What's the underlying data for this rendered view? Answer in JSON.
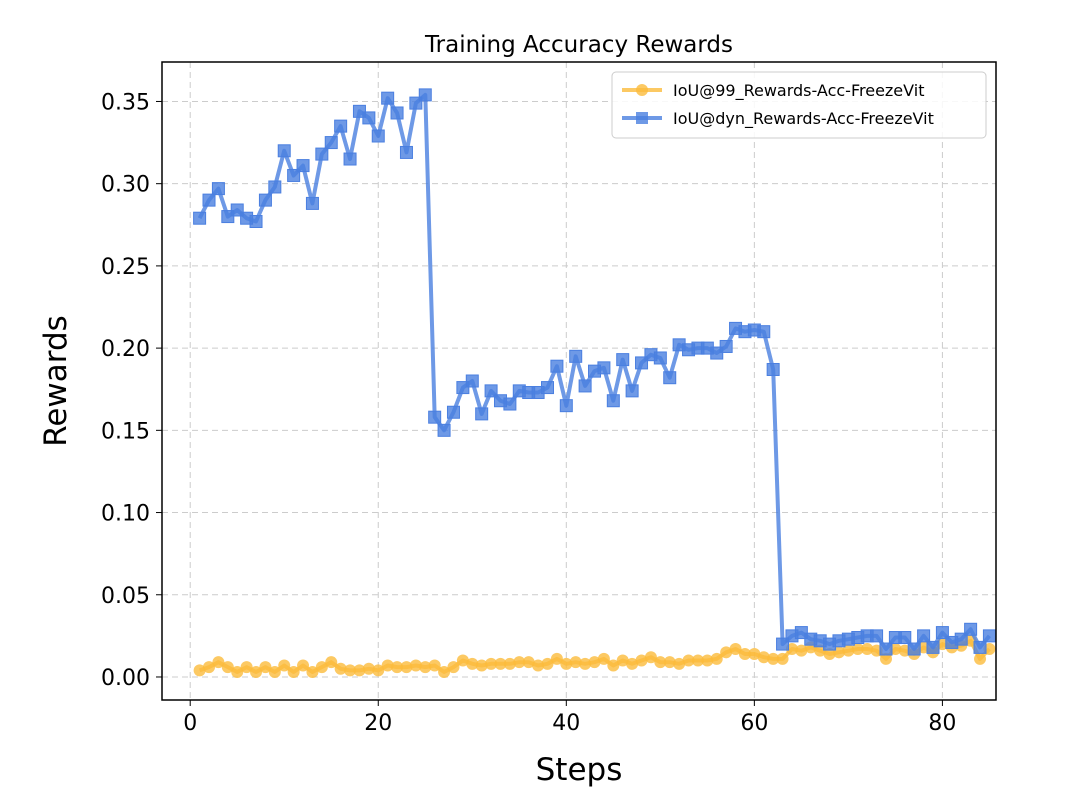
{
  "chart_data": {
    "type": "line",
    "title": "Training Accuracy Rewards",
    "xlabel": "Steps",
    "ylabel": "Rewards",
    "xlim": [
      -3,
      85.7
    ],
    "ylim": [
      -0.014,
      0.374
    ],
    "xticks": [
      0,
      20,
      40,
      60,
      80
    ],
    "yticks": [
      0.0,
      0.05,
      0.1,
      0.15,
      0.2,
      0.25,
      0.3,
      0.35
    ],
    "ytick_labels": [
      "0.00",
      "0.05",
      "0.10",
      "0.15",
      "0.20",
      "0.25",
      "0.30",
      "0.35"
    ],
    "grid": true,
    "legend_position": "top-right",
    "series": [
      {
        "name": "IoU@99_Rewards-Acc-FreezeVit",
        "color": "#fbbc3c",
        "marker": "circle",
        "x": [
          1,
          2,
          3,
          4,
          5,
          6,
          7,
          8,
          9,
          10,
          11,
          12,
          13,
          14,
          15,
          16,
          17,
          18,
          19,
          20,
          21,
          22,
          23,
          24,
          25,
          26,
          27,
          28,
          29,
          30,
          31,
          32,
          33,
          34,
          35,
          36,
          37,
          38,
          39,
          40,
          41,
          42,
          43,
          44,
          45,
          46,
          47,
          48,
          49,
          50,
          51,
          52,
          53,
          54,
          55,
          56,
          57,
          58,
          59,
          60,
          61,
          62,
          63,
          64,
          65,
          66,
          67,
          68,
          69,
          70,
          71,
          72,
          73,
          74,
          75,
          76,
          77,
          78,
          79,
          80,
          81,
          82,
          83,
          84,
          85
        ],
        "values": [
          0.004,
          0.006,
          0.009,
          0.006,
          0.003,
          0.006,
          0.003,
          0.006,
          0.003,
          0.007,
          0.003,
          0.007,
          0.003,
          0.006,
          0.009,
          0.005,
          0.004,
          0.004,
          0.005,
          0.004,
          0.007,
          0.006,
          0.006,
          0.007,
          0.006,
          0.007,
          0.003,
          0.006,
          0.01,
          0.008,
          0.007,
          0.008,
          0.008,
          0.008,
          0.009,
          0.009,
          0.007,
          0.008,
          0.011,
          0.008,
          0.009,
          0.008,
          0.009,
          0.011,
          0.007,
          0.01,
          0.008,
          0.01,
          0.012,
          0.009,
          0.009,
          0.008,
          0.01,
          0.01,
          0.01,
          0.011,
          0.015,
          0.017,
          0.014,
          0.014,
          0.012,
          0.011,
          0.011,
          0.017,
          0.016,
          0.018,
          0.016,
          0.014,
          0.015,
          0.016,
          0.017,
          0.017,
          0.016,
          0.011,
          0.017,
          0.016,
          0.014,
          0.018,
          0.015,
          0.02,
          0.018,
          0.019,
          0.022,
          0.011,
          0.017
        ]
      },
      {
        "name": "IoU@dyn_Rewards-Acc-FreezeVit",
        "color": "#4a7fe0",
        "marker": "square",
        "x": [
          1,
          2,
          3,
          4,
          5,
          6,
          7,
          8,
          9,
          10,
          11,
          12,
          13,
          14,
          15,
          16,
          17,
          18,
          19,
          20,
          21,
          22,
          23,
          24,
          25,
          26,
          27,
          28,
          29,
          30,
          31,
          32,
          33,
          34,
          35,
          36,
          37,
          38,
          39,
          40,
          41,
          42,
          43,
          44,
          45,
          46,
          47,
          48,
          49,
          50,
          51,
          52,
          53,
          54,
          55,
          56,
          57,
          58,
          59,
          60,
          61,
          62,
          63,
          64,
          65,
          66,
          67,
          68,
          69,
          70,
          71,
          72,
          73,
          74,
          75,
          76,
          77,
          78,
          79,
          80,
          81,
          82,
          83,
          84,
          85
        ],
        "values": [
          0.279,
          0.29,
          0.297,
          0.28,
          0.284,
          0.279,
          0.277,
          0.29,
          0.298,
          0.32,
          0.305,
          0.311,
          0.288,
          0.318,
          0.325,
          0.335,
          0.315,
          0.344,
          0.34,
          0.329,
          0.352,
          0.343,
          0.319,
          0.349,
          0.354,
          0.158,
          0.15,
          0.161,
          0.176,
          0.18,
          0.16,
          0.174,
          0.168,
          0.166,
          0.174,
          0.173,
          0.173,
          0.176,
          0.189,
          0.165,
          0.195,
          0.177,
          0.186,
          0.188,
          0.168,
          0.193,
          0.174,
          0.191,
          0.196,
          0.194,
          0.182,
          0.202,
          0.199,
          0.2,
          0.2,
          0.197,
          0.201,
          0.212,
          0.21,
          0.211,
          0.21,
          0.187,
          0.02,
          0.025,
          0.027,
          0.023,
          0.022,
          0.02,
          0.022,
          0.023,
          0.024,
          0.025,
          0.025,
          0.017,
          0.024,
          0.024,
          0.017,
          0.025,
          0.018,
          0.027,
          0.021,
          0.023,
          0.029,
          0.018,
          0.025
        ]
      }
    ]
  }
}
